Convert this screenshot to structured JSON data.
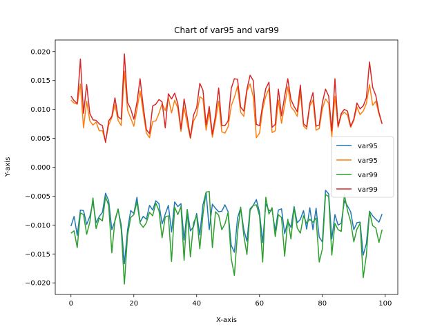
{
  "chart_data": {
    "type": "line",
    "title": "Chart of var95 and var99",
    "xlabel": "X-axis",
    "ylabel": "Y-axis",
    "xlim": [
      -5,
      104
    ],
    "ylim": [
      -0.022,
      0.022
    ],
    "x_ticks": [
      0,
      20,
      40,
      60,
      80,
      100
    ],
    "x_tick_labels": [
      "0",
      "20",
      "40",
      "60",
      "80",
      "100"
    ],
    "y_ticks": [
      0.02,
      0.015,
      0.01,
      0.005,
      0.0,
      -0.005,
      -0.01,
      -0.015,
      -0.02
    ],
    "y_tick_labels": [
      "0.020",
      "0.015",
      "0.010",
      "0.005",
      "0.000",
      "−0.005",
      "−0.010",
      "−0.015",
      "−0.020"
    ],
    "grid": false,
    "legend_position": "center-right",
    "x": [
      0,
      1,
      2,
      3,
      4,
      5,
      6,
      7,
      8,
      9,
      10,
      11,
      12,
      13,
      14,
      15,
      16,
      17,
      18,
      19,
      20,
      21,
      22,
      23,
      24,
      25,
      26,
      27,
      28,
      29,
      30,
      31,
      32,
      33,
      34,
      35,
      36,
      37,
      38,
      39,
      40,
      41,
      42,
      43,
      44,
      45,
      46,
      47,
      48,
      49,
      50,
      51,
      52,
      53,
      54,
      55,
      56,
      57,
      58,
      59,
      60,
      61,
      62,
      63,
      64,
      65,
      66,
      67,
      68,
      69,
      70,
      71,
      72,
      73,
      74,
      75,
      76,
      77,
      78,
      79,
      80,
      81,
      82,
      83,
      84,
      85,
      86,
      87,
      88,
      89,
      90,
      91,
      92,
      93,
      94,
      95,
      96,
      97,
      98,
      99
    ],
    "series": [
      {
        "name": "var95",
        "color": "#1f77b4",
        "values": [
          -0.0102,
          -0.0085,
          -0.0118,
          -0.0074,
          -0.0075,
          -0.0099,
          -0.0085,
          -0.006,
          -0.0096,
          -0.0085,
          -0.0078,
          -0.0045,
          -0.0058,
          -0.0108,
          -0.0093,
          -0.0073,
          -0.01,
          -0.0167,
          -0.0109,
          -0.0075,
          -0.008,
          -0.0052,
          -0.0095,
          -0.0085,
          -0.009,
          -0.0066,
          -0.0074,
          -0.0058,
          -0.0063,
          -0.0098,
          -0.0081,
          -0.0066,
          -0.0112,
          -0.006,
          -0.0068,
          -0.0063,
          -0.0126,
          -0.0073,
          -0.011,
          -0.0103,
          -0.008,
          -0.0117,
          -0.0065,
          -0.0043,
          -0.0108,
          -0.0064,
          -0.0071,
          -0.0077,
          -0.0076,
          -0.0065,
          -0.0077,
          -0.0135,
          -0.0147,
          -0.0088,
          -0.007,
          -0.0108,
          -0.0128,
          -0.0072,
          -0.0066,
          -0.0056,
          -0.0078,
          -0.013,
          -0.0063,
          -0.0075,
          -0.0074,
          -0.011,
          -0.0074,
          -0.0072,
          -0.0115,
          -0.0093,
          -0.0104,
          -0.0068,
          -0.0096,
          -0.009,
          -0.0075,
          -0.0107,
          -0.007,
          -0.0108,
          -0.0071,
          -0.0121,
          -0.0129,
          -0.004,
          -0.0046,
          -0.0124,
          -0.0082,
          -0.01,
          -0.0097,
          -0.0058,
          -0.0067,
          -0.0077,
          -0.0108,
          -0.0096,
          -0.0095,
          -0.0152,
          -0.0132,
          -0.0076,
          -0.0084,
          -0.009,
          -0.0095,
          -0.0081
        ]
      },
      {
        "name": "var95",
        "color": "#ff7f0e",
        "values": [
          0.0116,
          0.0111,
          0.0109,
          0.0144,
          0.0068,
          0.0114,
          0.008,
          0.0073,
          0.0078,
          0.0063,
          0.0063,
          0.0045,
          0.0073,
          0.0086,
          0.0108,
          0.0081,
          0.0072,
          0.0166,
          0.0099,
          0.0085,
          0.0071,
          0.01,
          0.0132,
          0.0094,
          0.0059,
          0.0051,
          0.0079,
          0.008,
          0.0093,
          0.011,
          0.0098,
          0.012,
          0.0094,
          0.0116,
          0.0102,
          0.0062,
          0.0103,
          0.0075,
          0.005,
          0.008,
          0.009,
          0.0122,
          0.0118,
          0.0064,
          0.0095,
          0.0052,
          0.0081,
          0.0114,
          0.0061,
          0.0059,
          0.007,
          0.0106,
          0.0121,
          0.014,
          0.0095,
          0.0088,
          0.0132,
          0.0144,
          0.0122,
          0.0051,
          0.0059,
          0.01,
          0.0123,
          0.0136,
          0.006,
          0.0063,
          0.0116,
          0.0076,
          0.0107,
          0.0139,
          0.0104,
          0.0098,
          0.0088,
          0.013,
          0.0071,
          0.0066,
          0.0106,
          0.0116,
          0.0064,
          0.0067,
          0.0101,
          0.0118,
          0.0111,
          0.0053,
          0.0123,
          0.0069,
          0.009,
          0.0095,
          0.009,
          0.0069,
          0.0081,
          0.0104,
          0.0091,
          0.0097,
          0.011,
          0.0143,
          0.0107,
          0.0114,
          0.0092,
          0.0075
        ]
      },
      {
        "name": "var99",
        "color": "#2ca02c",
        "values": [
          -0.0114,
          -0.011,
          -0.0139,
          -0.0079,
          -0.0082,
          -0.0116,
          -0.0095,
          -0.0053,
          -0.0106,
          -0.0088,
          -0.0093,
          -0.0051,
          -0.0066,
          -0.0148,
          -0.0091,
          -0.0072,
          -0.0108,
          -0.0202,
          -0.0118,
          -0.0087,
          -0.0082,
          -0.006,
          -0.0097,
          -0.0104,
          -0.0096,
          -0.0078,
          -0.0084,
          -0.0062,
          -0.0075,
          -0.0122,
          -0.0086,
          -0.0084,
          -0.0163,
          -0.0069,
          -0.0082,
          -0.0068,
          -0.0161,
          -0.0074,
          -0.0155,
          -0.0096,
          -0.0084,
          -0.0141,
          -0.0082,
          -0.0043,
          -0.0042,
          -0.0139,
          -0.0077,
          -0.0083,
          -0.0108,
          -0.0098,
          -0.0078,
          -0.0158,
          -0.0187,
          -0.0113,
          -0.0069,
          -0.0118,
          -0.0151,
          -0.0075,
          -0.0066,
          -0.0065,
          -0.0084,
          -0.0164,
          -0.0052,
          -0.0081,
          -0.007,
          -0.012,
          -0.0082,
          -0.0087,
          -0.0154,
          -0.009,
          -0.0124,
          -0.007,
          -0.0105,
          -0.0114,
          -0.0084,
          -0.0097,
          -0.009,
          -0.0095,
          -0.0088,
          -0.0164,
          -0.0141,
          -0.0047,
          -0.0051,
          -0.0152,
          -0.0097,
          -0.0108,
          -0.0111,
          -0.0047,
          -0.0075,
          -0.0094,
          -0.0129,
          -0.0107,
          -0.0097,
          -0.0191,
          -0.0152,
          -0.0077,
          -0.0101,
          -0.0105,
          -0.013,
          -0.0108
        ]
      },
      {
        "name": "var99",
        "color": "#d62728",
        "values": [
          0.0123,
          0.0115,
          0.011,
          0.0187,
          0.0093,
          0.0143,
          0.0093,
          0.0082,
          0.0081,
          0.0075,
          0.0072,
          0.0043,
          0.008,
          0.0088,
          0.012,
          0.0087,
          0.0083,
          0.0196,
          0.0112,
          0.0101,
          0.0083,
          0.0112,
          0.0153,
          0.0105,
          0.0065,
          0.0058,
          0.0106,
          0.0109,
          0.0117,
          0.0113,
          0.0068,
          0.0127,
          0.0118,
          0.0128,
          0.011,
          0.0066,
          0.0118,
          0.0086,
          0.0051,
          0.009,
          0.0103,
          0.0145,
          0.0133,
          0.0073,
          0.0105,
          0.0057,
          0.009,
          0.0137,
          0.0072,
          0.0072,
          0.008,
          0.0136,
          0.0153,
          0.0152,
          0.0104,
          0.0097,
          0.0135,
          0.0159,
          0.015,
          0.0074,
          0.0072,
          0.0108,
          0.0136,
          0.0147,
          0.0069,
          0.0074,
          0.0135,
          0.0089,
          0.0123,
          0.0153,
          0.0117,
          0.0105,
          0.0096,
          0.0142,
          0.0075,
          0.007,
          0.011,
          0.0129,
          0.0071,
          0.0073,
          0.0112,
          0.0135,
          0.0123,
          0.0063,
          0.0153,
          0.0071,
          0.0093,
          0.01,
          0.0097,
          0.0071,
          0.0083,
          0.0111,
          0.0101,
          0.0106,
          0.012,
          0.0182,
          0.0138,
          0.0124,
          0.0095,
          0.0075
        ]
      }
    ]
  }
}
